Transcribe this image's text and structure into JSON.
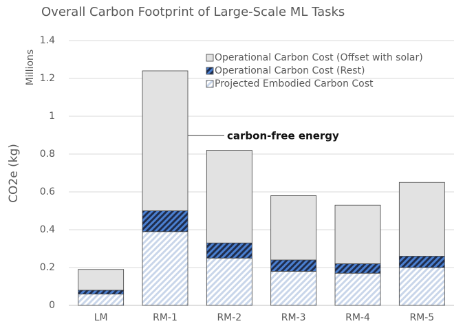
{
  "chart_data": {
    "type": "stacked_bar",
    "title": "Overall Carbon Footprint of Large-Scale ML Tasks",
    "y_label": "CO2e (kg)",
    "y_unit": "Millions",
    "categories": [
      "LM",
      "RM-1",
      "RM-2",
      "RM-3",
      "RM-4",
      "RM-5"
    ],
    "series": [
      {
        "name": "Projected Embodied Carbon Cost",
        "color": "#ffffff",
        "hatch_color": "#c9d6ea",
        "values": [
          0.06,
          0.39,
          0.25,
          0.18,
          0.17,
          0.2
        ]
      },
      {
        "name": "Operational Carbon Cost (Rest)",
        "color": "#1f2d4d",
        "hatch_color": "#4a7fd0",
        "values": [
          0.02,
          0.11,
          0.08,
          0.06,
          0.05,
          0.06
        ]
      },
      {
        "name": "Operational Carbon Cost (Offset with solar)",
        "color": "#e2e2e2",
        "values": [
          0.11,
          0.74,
          0.49,
          0.34,
          0.31,
          0.39
        ]
      }
    ],
    "ylim": [
      0,
      1.4
    ],
    "yticks": [
      0,
      0.2,
      0.4,
      0.6,
      0.8,
      1,
      1.2,
      1.4
    ],
    "grid": true,
    "legend": "top-right",
    "annotation": "carbon-free energy"
  }
}
